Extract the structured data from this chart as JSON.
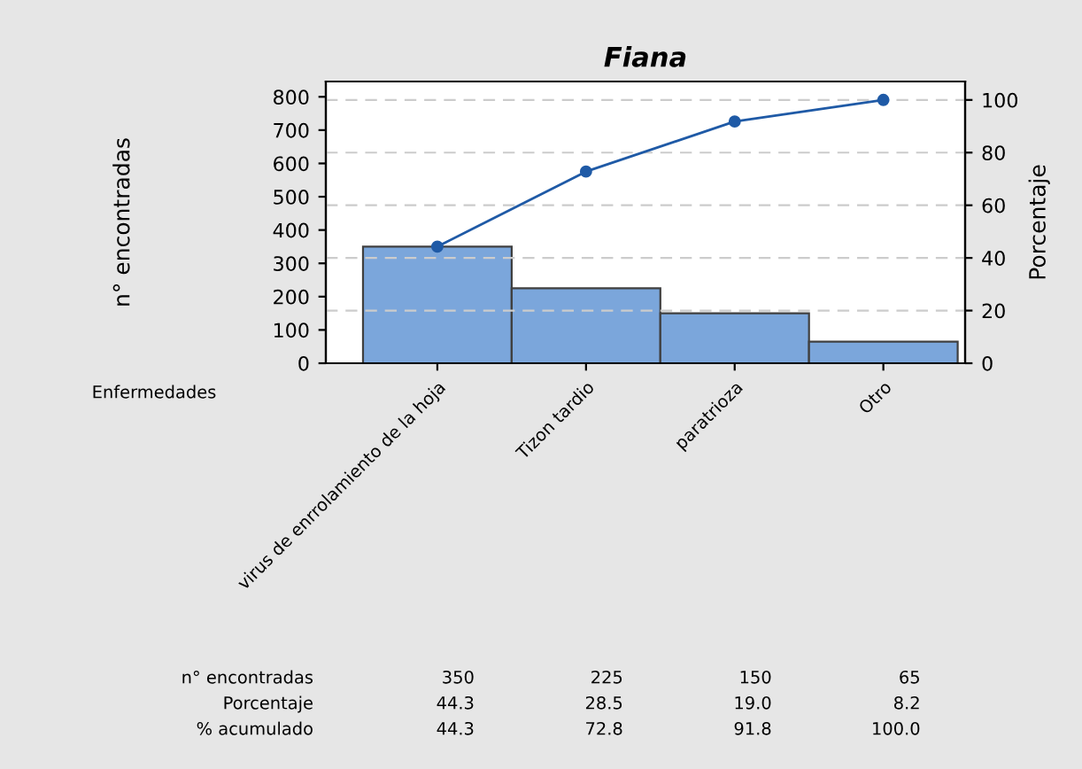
{
  "chart_data": {
    "type": "bar",
    "title": "Fiana",
    "xlabel": "Enfermedades",
    "ylabel": "n° encontradas",
    "y2label": "Porcentaje",
    "categories": [
      "virus de enrrolamiento de la hoja",
      "Tizon tardio",
      "paratrioza",
      "Otro"
    ],
    "series": [
      {
        "color": "#7ba6db",
        "values": [
          350,
          225,
          150,
          65
        ],
        "value_labels": [
          "350",
          "225",
          "150",
          "65"
        ]
      },
      {
        "type": "line",
        "axis": "y2",
        "color": "#1f5aa6",
        "marker": "circle",
        "values": [
          44.3,
          72.8,
          91.8,
          100.0
        ],
        "value_labels": [
          "44.3",
          "72.8",
          "91.8",
          "100.0"
        ]
      }
    ],
    "ylim": [
      0,
      846
    ],
    "yticks": [
      0,
      100,
      200,
      300,
      400,
      500,
      600,
      700,
      800
    ],
    "y2lim": [
      0,
      107
    ],
    "y2ticks": [
      0,
      20,
      40,
      60,
      80,
      100
    ],
    "annotations": [
      "n° encontradas",
      "Porcentaje",
      "44.3",
      "28.5",
      "19.0",
      "8.2",
      "% acumulado"
    ],
    "grid": "y",
    "legend": false
  }
}
